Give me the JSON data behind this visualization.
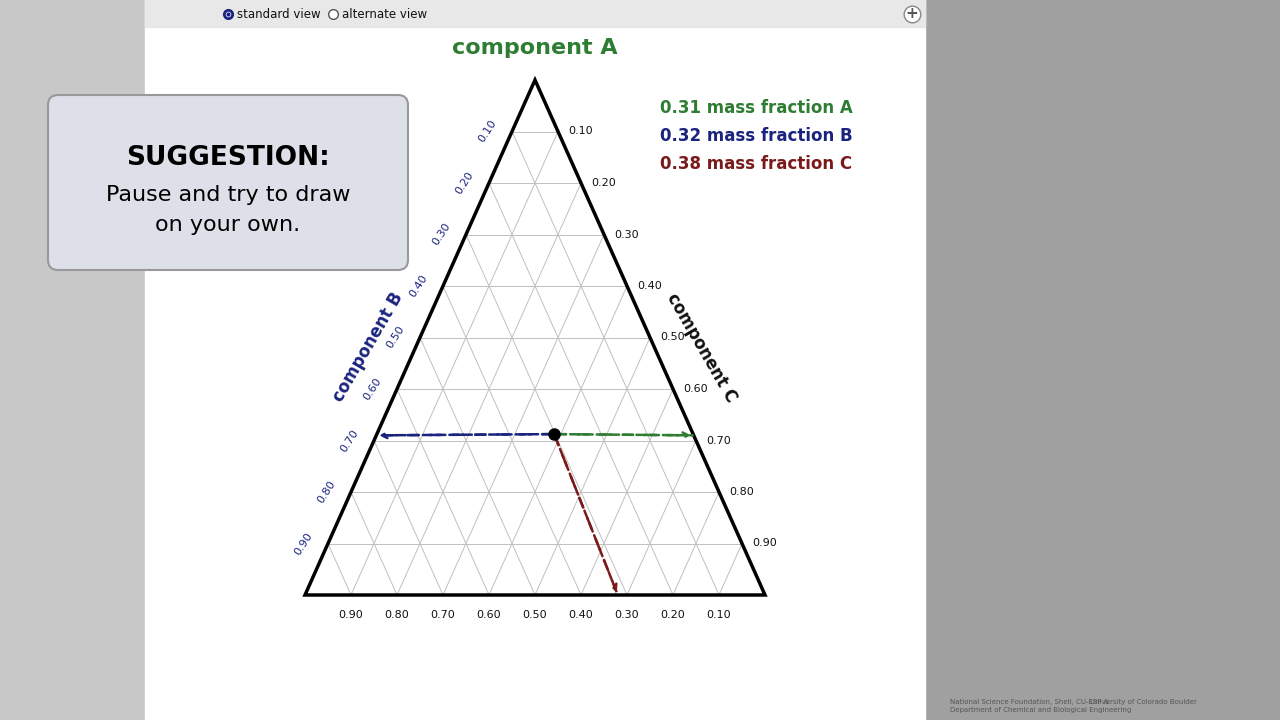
{
  "title": "component A",
  "label_b": "component B",
  "label_c": "component C",
  "suggestion_title": "SUGGESTION:",
  "suggestion_line1": "Pause and try to draw",
  "suggestion_line2": "on your own.",
  "bg_color": "#f0f0f5",
  "main_bg": "#ffffff",
  "panel_bg": "#ffffff",
  "left_bar_color": "#c8c8c8",
  "right_bar_color": "#a0a0a0",
  "toolbar_bg": "#e8e8e8",
  "tick_labels": [
    "0.10",
    "0.20",
    "0.30",
    "0.40",
    "0.50",
    "0.60",
    "0.70",
    "0.80",
    "0.90"
  ],
  "point_a": 0.31,
  "point_b": 0.32,
  "point_c": 0.38,
  "annotation_a_color": "#2e7d32",
  "annotation_b_color": "#1a237e",
  "annotation_c_color": "#7b1a1a",
  "arrow_b_color": "#1a237e",
  "arrow_c_color": "#7b1a1a",
  "arrow_green_color": "#2e7d32",
  "grid_color": "#c0c0c0",
  "tri_color": "#000000",
  "sugg_bg": "#dde0e8",
  "sugg_border": "#999999"
}
